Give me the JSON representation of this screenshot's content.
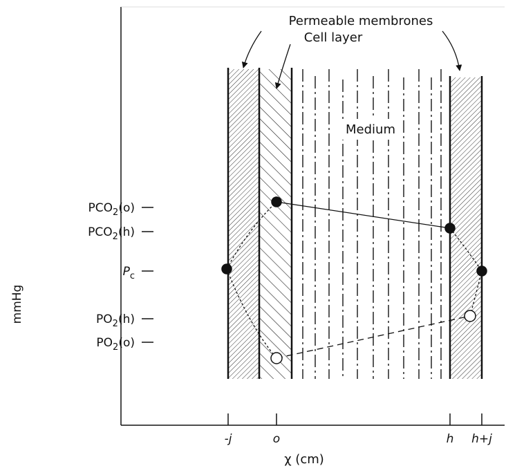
{
  "labels": {
    "membranes": "Permeable membrones",
    "cell_layer": "Cell layer",
    "medium": "Medium"
  },
  "y_axis": {
    "title": "mmHg",
    "ticks": [
      {
        "main": "PCO",
        "sub": "2",
        "tail": "(o)"
      },
      {
        "main": "PCO",
        "sub": "2",
        "tail": "(h)"
      },
      {
        "main": "P",
        "sub": "c"
      },
      {
        "main": "PO",
        "sub": "2",
        "tail": "(h)"
      },
      {
        "main": "PO",
        "sub": "2",
        "tail": "(o)"
      }
    ]
  },
  "x_axis": {
    "title": "χ (cm)",
    "ticks": [
      "-j",
      "o",
      "h",
      "h+j"
    ]
  }
}
